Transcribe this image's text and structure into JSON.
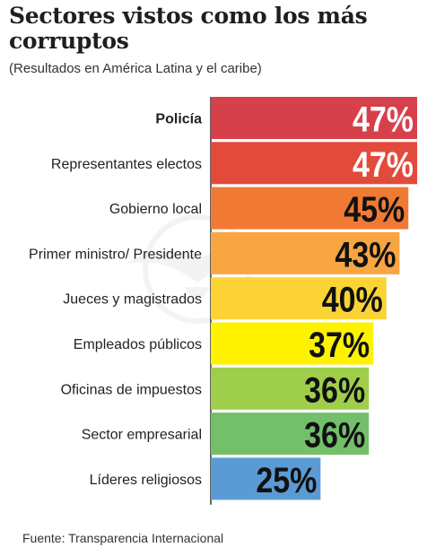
{
  "chart_data": {
    "type": "bar",
    "orientation": "horizontal",
    "title": "Sectores vistos como los más corruptos",
    "subtitle": "(Resultados en América Latina y el caribe)",
    "categories": [
      "Policía",
      "Representantes electos",
      "Gobierno local",
      "Primer ministro/ Presidente",
      "Jueces y magistrados",
      "Empleados públicos",
      "Oficinas de impuestos",
      "Sector empresarial",
      "Líderes religiosos"
    ],
    "values": [
      47,
      47,
      45,
      43,
      40,
      37,
      36,
      36,
      25
    ],
    "value_labels": [
      "47%",
      "47%",
      "45%",
      "43%",
      "40%",
      "37%",
      "36%",
      "36%",
      "25%"
    ],
    "bar_colors": [
      "#d6404a",
      "#e24a3c",
      "#f07a34",
      "#f8a542",
      "#fbd334",
      "#fef200",
      "#9fcf4a",
      "#74bf6a",
      "#5b9bd5"
    ],
    "label_colors": [
      "#ffffff",
      "#ffffff",
      "#111111",
      "#111111",
      "#111111",
      "#111111",
      "#111111",
      "#111111",
      "#111111"
    ],
    "bold_categories": [
      "Policía"
    ],
    "xlim": [
      0,
      47
    ],
    "source": "Fuente: Transparencia Internacional"
  }
}
